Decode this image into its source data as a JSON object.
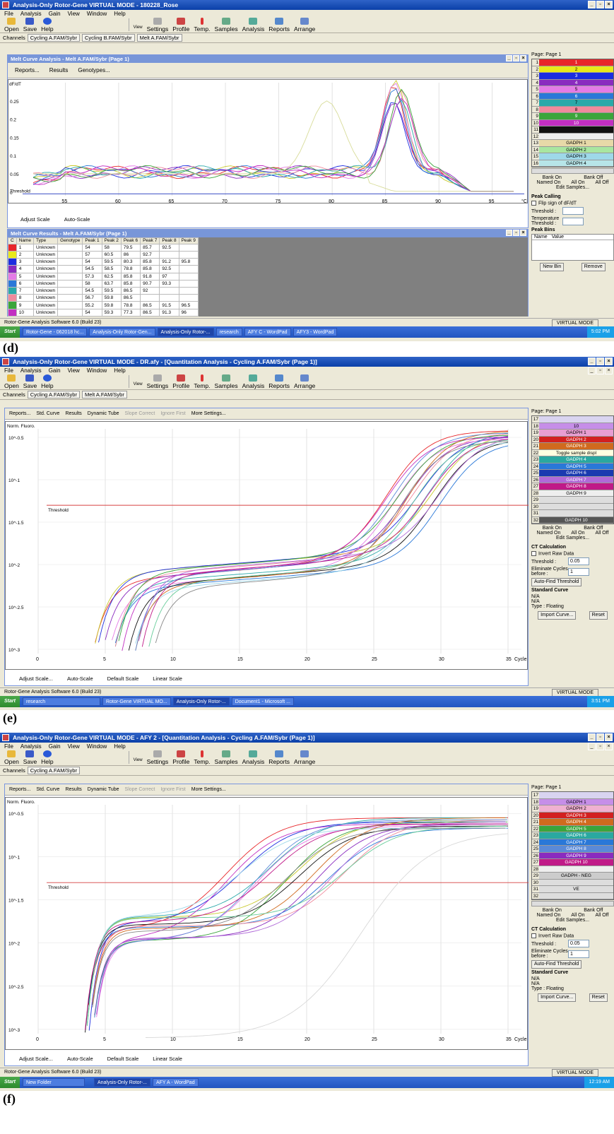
{
  "d": {
    "title": "Analysis-Only Rotor-Gene VIRTUAL MODE - 180228_Rose",
    "menu": [
      "File",
      "Analysis",
      "Gain",
      "View",
      "Window",
      "Help"
    ],
    "toolbar_left": [
      "Open",
      "Save",
      "Help"
    ],
    "toolbar_view_label": "View",
    "toolbar_right": [
      "Settings",
      "Profile",
      "Temp.",
      "Samples",
      "Analysis",
      "Reports",
      "Arrange"
    ],
    "channels_label": "Channels",
    "channel_tabs": [
      "Cycling A.FAM/Sybr",
      "Cycling B.FAM/Sybr",
      "Melt A.FAM/Sybr"
    ],
    "subwindow_title": "Melt Curve Analysis - Melt A.FAM/Sybr (Page 1)",
    "subtoolbar": [
      "Reports...",
      "Results",
      "Genotypes..."
    ],
    "y_label": "dF/dT",
    "threshold_label": "Threshold",
    "bottom_controls": [
      "Adjust Scale",
      "Auto-Scale"
    ],
    "results_title": "Melt Curve Results - Melt A.FAM/Sybr (Page 1)",
    "results_headers": [
      "C",
      "Name",
      "Type",
      "Genotype",
      "Peak 1",
      "Peak 2",
      "Peak 6",
      "Peak 7",
      "Peak 8",
      "Peak 9"
    ],
    "results_rows": [
      [
        "1",
        "Unknown",
        "",
        "54",
        "58",
        "79.5",
        "85.7",
        "92.5",
        ""
      ],
      [
        "2",
        "Unknown",
        "",
        "57",
        "60.5",
        "86",
        "92.7",
        "",
        ""
      ],
      [
        "3",
        "Unknown",
        "",
        "54",
        "59.5",
        "80.3",
        "85.8",
        "91.2",
        "95.8"
      ],
      [
        "4",
        "Unknown",
        "",
        "54.5",
        "58.5",
        "78.8",
        "85.8",
        "92.5",
        ""
      ],
      [
        "5",
        "Unknown",
        "",
        "57.3",
        "62.5",
        "85.8",
        "91.8",
        "97",
        ""
      ],
      [
        "6",
        "Unknown",
        "",
        "58",
        "63.7",
        "85.8",
        "90.7",
        "93.3",
        ""
      ],
      [
        "7",
        "Unknown",
        "",
        "54.5",
        "59.5",
        "86.5",
        "92",
        "",
        ""
      ],
      [
        "8",
        "Unknown",
        "",
        "56.7",
        "59.8",
        "86.5",
        "",
        "",
        ""
      ],
      [
        "9",
        "Unknown",
        "",
        "55.2",
        "59.8",
        "78.8",
        "86.5",
        "91.5",
        "96.5"
      ],
      [
        "10",
        "Unknown",
        "",
        "54",
        "59.3",
        "77.3",
        "86.5",
        "91.3",
        "96"
      ]
    ],
    "page_label": "Page: Page 1",
    "samples": [
      {
        "n": "1",
        "label": "1",
        "color": "#e8262a"
      },
      {
        "n": "2",
        "label": "2",
        "color": "#e9e91a"
      },
      {
        "n": "3",
        "label": "3",
        "color": "#1c2de0"
      },
      {
        "n": "4",
        "label": "4",
        "color": "#8a2bbf"
      },
      {
        "n": "5",
        "label": "5",
        "color": "#e47be6"
      },
      {
        "n": "6",
        "label": "6",
        "color": "#2a78d8"
      },
      {
        "n": "7",
        "label": "7",
        "color": "#2aa9a9"
      },
      {
        "n": "8",
        "label": "8",
        "color": "#f08a9c"
      },
      {
        "n": "9",
        "label": "9",
        "color": "#3ba53b"
      },
      {
        "n": "10",
        "label": "10",
        "color": "#c22fc2"
      },
      {
        "n": "11",
        "label": "",
        "color": "#111111"
      },
      {
        "n": "12",
        "label": "",
        "color": "#eeeeee"
      },
      {
        "n": "13",
        "label": "GADPH 1",
        "color": "#e7d9a8"
      },
      {
        "n": "14",
        "label": "GADPH 2",
        "color": "#a8e6a0"
      },
      {
        "n": "15",
        "label": "GADPH 3",
        "color": "#9ed8e8"
      },
      {
        "n": "16",
        "label": "GADPH 4",
        "color": "#b7e5e8"
      }
    ],
    "bank": [
      "Bank On",
      "Bank Off",
      "Named On",
      "All On",
      "All Off",
      "Edit Samples..."
    ],
    "peak_calling": "Peak Calling",
    "flip_sign": "Flip sign of dF/dT",
    "threshold_field": "Threshold :",
    "temperature_field": "Temperature Threshold :",
    "peak_bins": "Peak Bins",
    "bins_headers": [
      "Name",
      "Value"
    ],
    "new_bin": "New Bin",
    "remove": "Remove",
    "status": "Rotor-Gene Analysis Software 6.0 (Build 23)",
    "virtual_mode": "VIRTUAL MODE",
    "taskbar": [
      "Rotor-Gene - 062018 hc...",
      "Analysis-Only Rotor-Gen...",
      "Analysis-Only Rotor-...",
      "research",
      "AFY C - WordPad",
      "AFY3 - WordPad"
    ],
    "clock": "5:02 PM",
    "fig_label": "(d)"
  },
  "e": {
    "title": "Analysis-Only Rotor-Gene VIRTUAL MODE - DR.afy - [Quantitation Analysis - Cycling A.FAM/Sybr (Page 1)]",
    "channel_tabs": [
      "Cycling A.FAM/Sybr",
      "Melt A.FAM/Sybr"
    ],
    "subtoolbar": [
      "Reports...",
      "Std. Curve",
      "Results",
      "Dynamic Tube",
      "Slope Correct",
      "Ignore First",
      "More Settings..."
    ],
    "y_label": "Norm. Fluoro.",
    "threshold_label": "Threshold",
    "bottom_controls": [
      "Adjust Scale...",
      "Auto-Scale",
      "Default Scale",
      "Linear Scale"
    ],
    "samples": [
      {
        "n": "17",
        "label": "",
        "color": "#d9d4f0"
      },
      {
        "n": "18",
        "label": "10",
        "color": "#c68ee8"
      },
      {
        "n": "19",
        "label": "GADPH 1",
        "color": "#e89ed2"
      },
      {
        "n": "20",
        "label": "GADPH 2",
        "color": "#d22020"
      },
      {
        "n": "21",
        "label": "GADPH 3",
        "color": "#d06a1e"
      },
      {
        "n": "22",
        "label": "Toggle sample displ",
        "color": "#ffffe0"
      },
      {
        "n": "23",
        "label": "GADPH 4",
        "color": "#2aa8a0"
      },
      {
        "n": "24",
        "label": "GADPH 5",
        "color": "#2a78d8"
      },
      {
        "n": "25",
        "label": "GADPH 6",
        "color": "#1a3ab0"
      },
      {
        "n": "26",
        "label": "GADPH 7",
        "color": "#b06ad8"
      },
      {
        "n": "27",
        "label": "GADPH 8",
        "color": "#c01a88"
      },
      {
        "n": "28",
        "label": "GADPH 9",
        "color": "#eeeeee"
      },
      {
        "n": "29",
        "label": "",
        "color": "#dddddd"
      },
      {
        "n": "30",
        "label": "",
        "color": "#dddddd"
      },
      {
        "n": "31",
        "label": "",
        "color": "#dddddd"
      },
      {
        "n": "32",
        "label": "GADPH 10",
        "color": "#555555"
      }
    ],
    "ct_calc": "CT Calculation",
    "invert": "Invert Raw Data",
    "threshold_field": "Threshold :",
    "threshold_value": "0.05",
    "eliminate": "Eliminate Cycles before :",
    "eliminate_value": "1",
    "auto_find": "Auto-Find Threshold",
    "std_curve": "Standard Curve",
    "na1": "N/A",
    "na2": "N/A",
    "type": "Type : Floating",
    "import_curve": "Import Curve...",
    "reset": "Reset",
    "taskbar": [
      "research",
      "Rotor-Gene VIRTUAL MO...",
      "Analysis-Only Rotor-...",
      "Document1 - Microsoft ..."
    ],
    "clock": "3:51 PM",
    "fig_label": "(e)"
  },
  "f": {
    "title": "Analysis-Only Rotor-Gene VIRTUAL MODE - AFY 2 - [Quantitation Analysis - Cycling A.FAM/Sybr (Page 1)]",
    "channel_tabs": [
      "Cycling A.FAM/Sybr"
    ],
    "samples": [
      {
        "n": "17",
        "label": "",
        "color": "#d9d4f0"
      },
      {
        "n": "18",
        "label": "GADPH 1",
        "color": "#c68ee8"
      },
      {
        "n": "19",
        "label": "GADPH 2",
        "color": "#f0b0d0"
      },
      {
        "n": "20",
        "label": "GADPH 3",
        "color": "#d22020"
      },
      {
        "n": "21",
        "label": "GADPH 4",
        "color": "#d06a1e"
      },
      {
        "n": "22",
        "label": "GADPH 5",
        "color": "#3ba53b"
      },
      {
        "n": "23",
        "label": "GADPH 6",
        "color": "#2aa8a0"
      },
      {
        "n": "24",
        "label": "GADPH 7",
        "color": "#2a78d8"
      },
      {
        "n": "25",
        "label": "GADPH 8",
        "color": "#5a8ad8"
      },
      {
        "n": "26",
        "label": "GADPH 9",
        "color": "#8a2bbf"
      },
      {
        "n": "27",
        "label": "GADPH 10",
        "color": "#c01a88"
      },
      {
        "n": "28",
        "label": "",
        "color": "#eeeeee"
      },
      {
        "n": "29",
        "label": "GADPH - NEG",
        "color": "#cccccc"
      },
      {
        "n": "30",
        "label": "",
        "color": "#dddddd"
      },
      {
        "n": "31",
        "label": "VE",
        "color": "#dddddd"
      },
      {
        "n": "32",
        "label": "",
        "color": "#dddddd"
      }
    ],
    "taskbar": [
      "New Folder",
      "Analysis-Only Rotor-...",
      "AFY A - WordPad"
    ],
    "clock": "12:19 AM",
    "fig_label": "(f)"
  },
  "chart_data": [
    {
      "type": "line",
      "ylabel": "dF/dT",
      "x_ticks": [
        55,
        60,
        65,
        70,
        75,
        80,
        85,
        90,
        95
      ],
      "x_unit": "°C",
      "xlim": [
        51,
        98
      ],
      "y_ticks": [
        0,
        0.05,
        0.1,
        0.15,
        0.2,
        0.25
      ],
      "ylim": [
        -0.01,
        0.3
      ],
      "series_note_peaks": [
        85.7,
        86,
        85.8,
        85.8,
        85.8,
        85.8,
        86.5,
        86.5,
        86.5,
        86.5
      ],
      "outlier_peak": 79.5
    },
    {
      "type": "line",
      "ylabel": "Norm. Fluoro.",
      "x_ticks": [
        0,
        5,
        10,
        15,
        20,
        25,
        30,
        35
      ],
      "x_unit": "Cycle",
      "xlim": [
        0,
        36
      ],
      "y_scale": "log",
      "y_ticks": [
        "10^-0.5",
        "10^-1",
        "10^-1.5",
        "10^-2",
        "10^-2.5",
        "10^-3"
      ],
      "threshold": 0.05
    },
    {
      "type": "line",
      "ylabel": "Norm. Fluoro.",
      "x_ticks": [
        0,
        5,
        10,
        15,
        20,
        25,
        30,
        35
      ],
      "x_unit": "Cycle",
      "xlim": [
        0,
        36
      ],
      "y_scale": "log",
      "y_ticks": [
        "10^-0.5",
        "10^-1",
        "10^-1.5",
        "10^-2",
        "10^-2.5",
        "10^-3"
      ],
      "threshold": 0.05
    }
  ]
}
